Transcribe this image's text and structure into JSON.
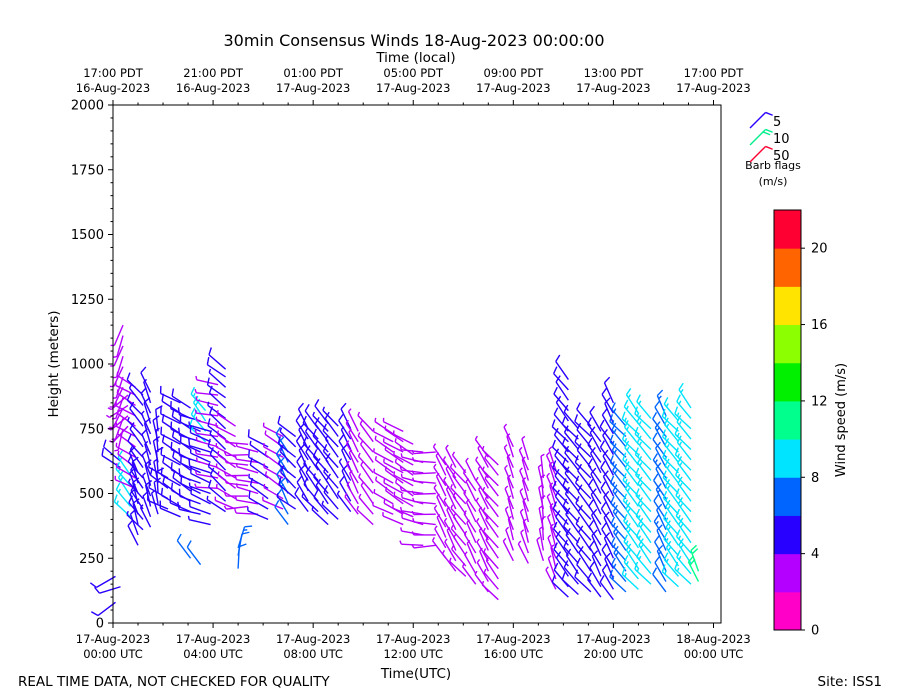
{
  "chart_data": {
    "type": "wind-barb",
    "title": "30min Consensus Winds 18-Aug-2023 00:00:00",
    "top_axis_label": "Time (local)",
    "top_ticks": [
      {
        "t": 0,
        "line1": "17:00 PDT",
        "line2": "16-Aug-2023"
      },
      {
        "t": 4,
        "line1": "21:00 PDT",
        "line2": "16-Aug-2023"
      },
      {
        "t": 8,
        "line1": "01:00 PDT",
        "line2": "17-Aug-2023"
      },
      {
        "t": 12,
        "line1": "05:00 PDT",
        "line2": "17-Aug-2023"
      },
      {
        "t": 16,
        "line1": "09:00 PDT",
        "line2": "17-Aug-2023"
      },
      {
        "t": 20,
        "line1": "13:00 PDT",
        "line2": "17-Aug-2023"
      },
      {
        "t": 24,
        "line1": "17:00 PDT",
        "line2": "17-Aug-2023"
      }
    ],
    "bottom_ticks": [
      {
        "t": 0,
        "line1": "17-Aug-2023",
        "line2": "00:00 UTC"
      },
      {
        "t": 4,
        "line1": "17-Aug-2023",
        "line2": "04:00 UTC"
      },
      {
        "t": 8,
        "line1": "17-Aug-2023",
        "line2": "08:00 UTC"
      },
      {
        "t": 12,
        "line1": "17-Aug-2023",
        "line2": "12:00 UTC"
      },
      {
        "t": 16,
        "line1": "17-Aug-2023",
        "line2": "16:00 UTC"
      },
      {
        "t": 20,
        "line1": "17-Aug-2023",
        "line2": "20:00 UTC"
      },
      {
        "t": 24,
        "line1": "18-Aug-2023",
        "line2": "00:00 UTC"
      }
    ],
    "xlabel": "Time(UTC)",
    "ylabel": "Height (meters)",
    "xlim_hours": [
      0,
      24.3
    ],
    "ylim": [
      0,
      2000
    ],
    "y_ticks": [
      0,
      250,
      500,
      750,
      1000,
      1250,
      1500,
      1750,
      2000
    ],
    "colorbar": {
      "label": "Wind speed (m/s)",
      "range": [
        0,
        22
      ],
      "ticks": [
        0,
        4,
        8,
        12,
        16,
        20
      ],
      "colors": [
        "#ff00c8",
        "#b400ff",
        "#2800ff",
        "#0064ff",
        "#00e4ff",
        "#00ff8c",
        "#00f000",
        "#8cff00",
        "#ffe400",
        "#ff6400",
        "#ff0032"
      ]
    },
    "barb_legend": {
      "title_line1": "Barb flags",
      "title_line2": "(m/s)",
      "items": [
        {
          "label": "5",
          "color": "#2800ff"
        },
        {
          "label": "10",
          "color": "#00f08c"
        },
        {
          "label": "50",
          "color": "#ff0032"
        }
      ]
    },
    "profiles": [
      {
        "t": 0.1,
        "heights": [
          80,
          180
        ],
        "speed": 5,
        "dir": 240
      },
      {
        "t": 0.3,
        "heights": [
          140
        ],
        "speed": 5,
        "dir": 260
      },
      {
        "t": 0.3,
        "heights": [
          600,
          625
        ],
        "speed": 5,
        "dir": 310
      },
      {
        "t": 0.4,
        "heights": [
          750,
          790,
          830,
          870,
          910,
          950,
          990,
          1030,
          1070,
          1110,
          1150
        ],
        "speed": 3,
        "dir": 200
      },
      {
        "t": 0.6,
        "heights": [
          760,
          800,
          840,
          880
        ],
        "speed": 3,
        "dir": 230
      },
      {
        "t": 0.7,
        "heights": [
          410,
          450,
          490,
          530,
          570
        ],
        "speed": 8,
        "dir": 320
      },
      {
        "t": 0.9,
        "heights": [
          520,
          560,
          600,
          640,
          680,
          720,
          760,
          800,
          840,
          880,
          910
        ],
        "speed": 3,
        "dir": 300
      },
      {
        "t": 1.0,
        "heights": [
          300,
          340,
          380,
          420,
          460,
          500,
          540,
          580
        ],
        "speed": 5,
        "dir": 340
      },
      {
        "t": 1.2,
        "heights": [
          360,
          400,
          440,
          480,
          520,
          560,
          600,
          640,
          680,
          720,
          760,
          800,
          840,
          880
        ],
        "speed": 4,
        "dir": 320
      },
      {
        "t": 1.5,
        "heights": [
          370,
          410,
          450,
          490,
          530,
          570,
          610,
          650,
          690,
          730,
          770,
          810,
          850,
          890
        ],
        "speed": 4,
        "dir": 340
      },
      {
        "t": 1.8,
        "heights": [
          420,
          460,
          500,
          540,
          580,
          620,
          660,
          700,
          740
        ],
        "speed": 4,
        "dir": 350
      },
      {
        "t": 2.2,
        "heights": [
          440,
          480,
          520,
          560
        ],
        "speed": 5,
        "dir": 300
      },
      {
        "t": 2.7,
        "heights": [
          410,
          450,
          490,
          530,
          570,
          610,
          650,
          690,
          730,
          770,
          810,
          850
        ],
        "speed": 5,
        "dir": 300
      },
      {
        "t": 3.1,
        "heights": [
          430,
          470,
          510,
          550,
          590,
          630,
          670,
          710,
          750,
          790,
          830
        ],
        "speed": 5,
        "dir": 300
      },
      {
        "t": 3.1,
        "heights": [
          250
        ],
        "speed": 6,
        "dir": 330
      },
      {
        "t": 3.5,
        "heights": [
          420,
          460,
          500,
          540,
          580,
          620,
          660,
          700,
          740,
          780
        ],
        "speed": 5,
        "dir": 290
      },
      {
        "t": 3.5,
        "heights": [
          225
        ],
        "speed": 6,
        "dir": 330
      },
      {
        "t": 3.7,
        "heights": [
          700,
          740,
          780,
          820
        ],
        "speed": 9,
        "dir": 320
      },
      {
        "t": 3.9,
        "heights": [
          380,
          420,
          460,
          500,
          540,
          580,
          620,
          660,
          700,
          740
        ],
        "speed": 4,
        "dir": 290
      },
      {
        "t": 4.2,
        "heights": [
          520,
          560,
          600,
          640,
          680,
          720,
          760,
          800,
          840,
          880,
          920
        ],
        "speed": 3,
        "dir": 280
      },
      {
        "t": 4.5,
        "heights": [
          430,
          470,
          510,
          550,
          590,
          630,
          670,
          710,
          750,
          790,
          830,
          870,
          910,
          950,
          980
        ],
        "speed": 4,
        "dir": 310
      },
      {
        "t": 4.9,
        "heights": [
          440,
          480,
          520,
          560,
          600,
          640,
          680,
          720,
          760
        ],
        "speed": 3,
        "dir": 300
      },
      {
        "t": 5.0,
        "heights": [
          210,
          260,
          290
        ],
        "speed": 6,
        "dir": 10
      },
      {
        "t": 5.4,
        "heights": [
          450,
          490,
          530,
          570,
          610,
          650,
          690
        ],
        "speed": 3,
        "dir": 270
      },
      {
        "t": 5.8,
        "heights": [
          420,
          460,
          500,
          540,
          580,
          620,
          660
        ],
        "speed": 3,
        "dir": 280
      },
      {
        "t": 6.2,
        "heights": [
          400,
          440,
          480,
          520,
          560,
          600,
          640,
          680
        ],
        "speed": 4,
        "dir": 300
      },
      {
        "t": 6.8,
        "heights": [
          440,
          480,
          520,
          560,
          600,
          640,
          680,
          720
        ],
        "speed": 3,
        "dir": 300
      },
      {
        "t": 7.0,
        "heights": [
          380,
          420,
          460,
          500,
          540,
          580,
          620,
          660
        ],
        "speed": 6,
        "dir": 330
      },
      {
        "t": 7.3,
        "heights": [
          440,
          480,
          520,
          560,
          600,
          640,
          680,
          720
        ],
        "speed": 4,
        "dir": 310
      },
      {
        "t": 7.8,
        "heights": [
          430,
          470,
          510,
          550,
          590,
          630,
          670,
          710,
          750
        ],
        "speed": 5,
        "dir": 330
      },
      {
        "t": 8.2,
        "heights": [
          430,
          470,
          510,
          550,
          590,
          630,
          670,
          710,
          750
        ],
        "speed": 4,
        "dir": 320
      },
      {
        "t": 8.6,
        "heights": [
          380,
          420,
          460,
          500,
          540,
          580,
          620,
          660,
          700,
          740,
          770
        ],
        "speed": 4,
        "dir": 320
      },
      {
        "t": 9.0,
        "heights": [
          400,
          440,
          480,
          520,
          560,
          600,
          640,
          680,
          720,
          760
        ],
        "speed": 4,
        "dir": 320
      },
      {
        "t": 9.5,
        "heights": [
          430,
          470,
          510,
          550,
          590,
          630,
          670,
          710,
          750
        ],
        "speed": 4,
        "dir": 330
      },
      {
        "t": 9.8,
        "heights": [
          420,
          460,
          500,
          540,
          580,
          620,
          660,
          700,
          740
        ],
        "speed": 3,
        "dir": 330
      },
      {
        "t": 10.4,
        "heights": [
          380,
          420,
          460,
          500,
          540,
          580,
          620,
          660,
          700,
          740
        ],
        "speed": 3,
        "dir": 320
      },
      {
        "t": 11.2,
        "heights": [
          420,
          460,
          500,
          540,
          580,
          620,
          660,
          700,
          730
        ],
        "speed": 3,
        "dir": 300
      },
      {
        "t": 11.6,
        "heights": [
          380,
          420,
          460,
          500,
          540,
          580,
          620,
          660,
          700,
          740
        ],
        "speed": 3,
        "dir": 300
      },
      {
        "t": 12.0,
        "heights": [
          410,
          450,
          490,
          530,
          570,
          610,
          650,
          690
        ],
        "speed": 3,
        "dir": 300
      },
      {
        "t": 12.4,
        "heights": [
          300,
          340,
          380,
          420,
          460,
          500,
          540,
          580,
          620,
          660
        ],
        "speed": 2,
        "dir": 280
      },
      {
        "t": 12.9,
        "heights": [
          300,
          340,
          380,
          420,
          460,
          500,
          540,
          580,
          620,
          660
        ],
        "speed": 2,
        "dir": 270
      },
      {
        "t": 13.3,
        "heights": [
          250,
          290,
          330,
          370,
          410,
          450,
          490,
          530,
          570,
          610
        ],
        "speed": 3,
        "dir": 330
      },
      {
        "t": 13.7,
        "heights": [
          200,
          240,
          280,
          320,
          360,
          400,
          440,
          480,
          520,
          560,
          600
        ],
        "speed": 3,
        "dir": 330
      },
      {
        "t": 14.1,
        "heights": [
          180,
          220,
          260,
          300,
          340,
          380,
          420,
          460,
          500,
          540,
          580
        ],
        "speed": 3,
        "dir": 320
      },
      {
        "t": 14.5,
        "heights": [
          150,
          190,
          230,
          270,
          310,
          350,
          390,
          430,
          470,
          510,
          550
        ],
        "speed": 3,
        "dir": 330
      },
      {
        "t": 15.0,
        "heights": [
          120,
          160,
          200,
          240,
          280,
          320,
          360,
          400,
          440,
          480,
          520,
          560,
          600,
          640
        ],
        "speed": 3,
        "dir": 330
      },
      {
        "t": 15.4,
        "heights": [
          90,
          130,
          170,
          210,
          250,
          290,
          330,
          370,
          410,
          450,
          490,
          530,
          570,
          610
        ],
        "speed": 3,
        "dir": 320
      },
      {
        "t": 16.0,
        "heights": [
          240,
          280,
          320,
          360,
          400,
          440,
          480,
          520,
          560,
          600,
          640,
          680
        ],
        "speed": 2,
        "dir": 340
      },
      {
        "t": 16.6,
        "heights": [
          230,
          270,
          310,
          350,
          390,
          430,
          470,
          510,
          550,
          590,
          630
        ],
        "speed": 2,
        "dir": 340
      },
      {
        "t": 17.2,
        "heights": [
          240,
          280,
          320,
          360,
          400,
          440,
          480,
          520,
          560
        ],
        "speed": 2,
        "dir": 350
      },
      {
        "t": 17.7,
        "heights": [
          130,
          170,
          210,
          250,
          290,
          330,
          370,
          410,
          450,
          490,
          530,
          570,
          590
        ],
        "speed": 3,
        "dir": 340
      },
      {
        "t": 18.2,
        "heights": [
          100,
          140,
          180,
          220,
          260,
          300,
          340,
          380,
          420,
          460,
          500,
          540,
          580,
          620,
          660,
          700,
          740,
          780,
          820,
          860,
          900,
          940
        ],
        "speed": 5,
        "dir": 320
      },
      {
        "t": 18.6,
        "heights": [
          110,
          150,
          190,
          230,
          270,
          310,
          350,
          390,
          430,
          470,
          510,
          550,
          590,
          630,
          670,
          710,
          750
        ],
        "speed": 5,
        "dir": 320
      },
      {
        "t": 19.1,
        "heights": [
          120,
          160,
          200,
          240,
          280,
          320,
          360,
          400,
          440,
          480,
          520,
          560,
          600,
          640,
          680,
          720,
          760
        ],
        "speed": 5,
        "dir": 320
      },
      {
        "t": 19.5,
        "heights": [
          100,
          140,
          180,
          220,
          260,
          300,
          340,
          380,
          420,
          460,
          500,
          540,
          580,
          620,
          660,
          700,
          740
        ],
        "speed": 5,
        "dir": 330
      },
      {
        "t": 20.0,
        "heights": [
          90,
          130,
          170,
          210,
          250,
          290,
          330,
          370,
          410,
          450,
          490,
          530,
          570,
          610,
          650,
          690,
          730,
          770,
          810,
          850
        ],
        "speed": 5,
        "dir": 330
      },
      {
        "t": 20.5,
        "heights": [
          120,
          160,
          200,
          240,
          280,
          320,
          360,
          400,
          440,
          480,
          520,
          560,
          600,
          640,
          680,
          720,
          760
        ],
        "speed": 7,
        "dir": 320
      },
      {
        "t": 21.0,
        "heights": [
          130,
          170,
          210,
          250,
          290,
          330,
          370,
          410,
          450,
          490,
          530,
          570,
          610,
          650,
          690,
          730,
          770,
          810
        ],
        "speed": 8,
        "dir": 320
      },
      {
        "t": 21.5,
        "heights": [
          150,
          190,
          230,
          270,
          310,
          350,
          390,
          430,
          470,
          510,
          550,
          590,
          630,
          670,
          710,
          750,
          790
        ],
        "speed": 8,
        "dir": 320
      },
      {
        "t": 22.1,
        "heights": [
          120,
          160,
          200,
          240,
          280,
          320,
          360,
          400,
          440,
          480,
          520,
          560,
          600,
          640,
          680,
          720,
          760,
          800
        ],
        "speed": 6,
        "dir": 330
      },
      {
        "t": 22.6,
        "heights": [
          140,
          180,
          220,
          260,
          300,
          340,
          380,
          420,
          460,
          500,
          540,
          580,
          620,
          660,
          700,
          740,
          780
        ],
        "speed": 8,
        "dir": 320
      },
      {
        "t": 23.1,
        "heights": [
          150,
          190,
          230,
          270,
          310,
          350,
          390,
          430,
          470,
          510,
          550,
          590,
          630,
          670,
          710,
          750,
          790,
          830
        ],
        "speed": 8,
        "dir": 320
      },
      {
        "t": 23.4,
        "heights": [
          160,
          200
        ],
        "speed": 11,
        "dir": 340
      }
    ]
  },
  "footer": {
    "left": "REAL TIME DATA, NOT CHECKED FOR QUALITY",
    "right": "Site: ISS1"
  }
}
